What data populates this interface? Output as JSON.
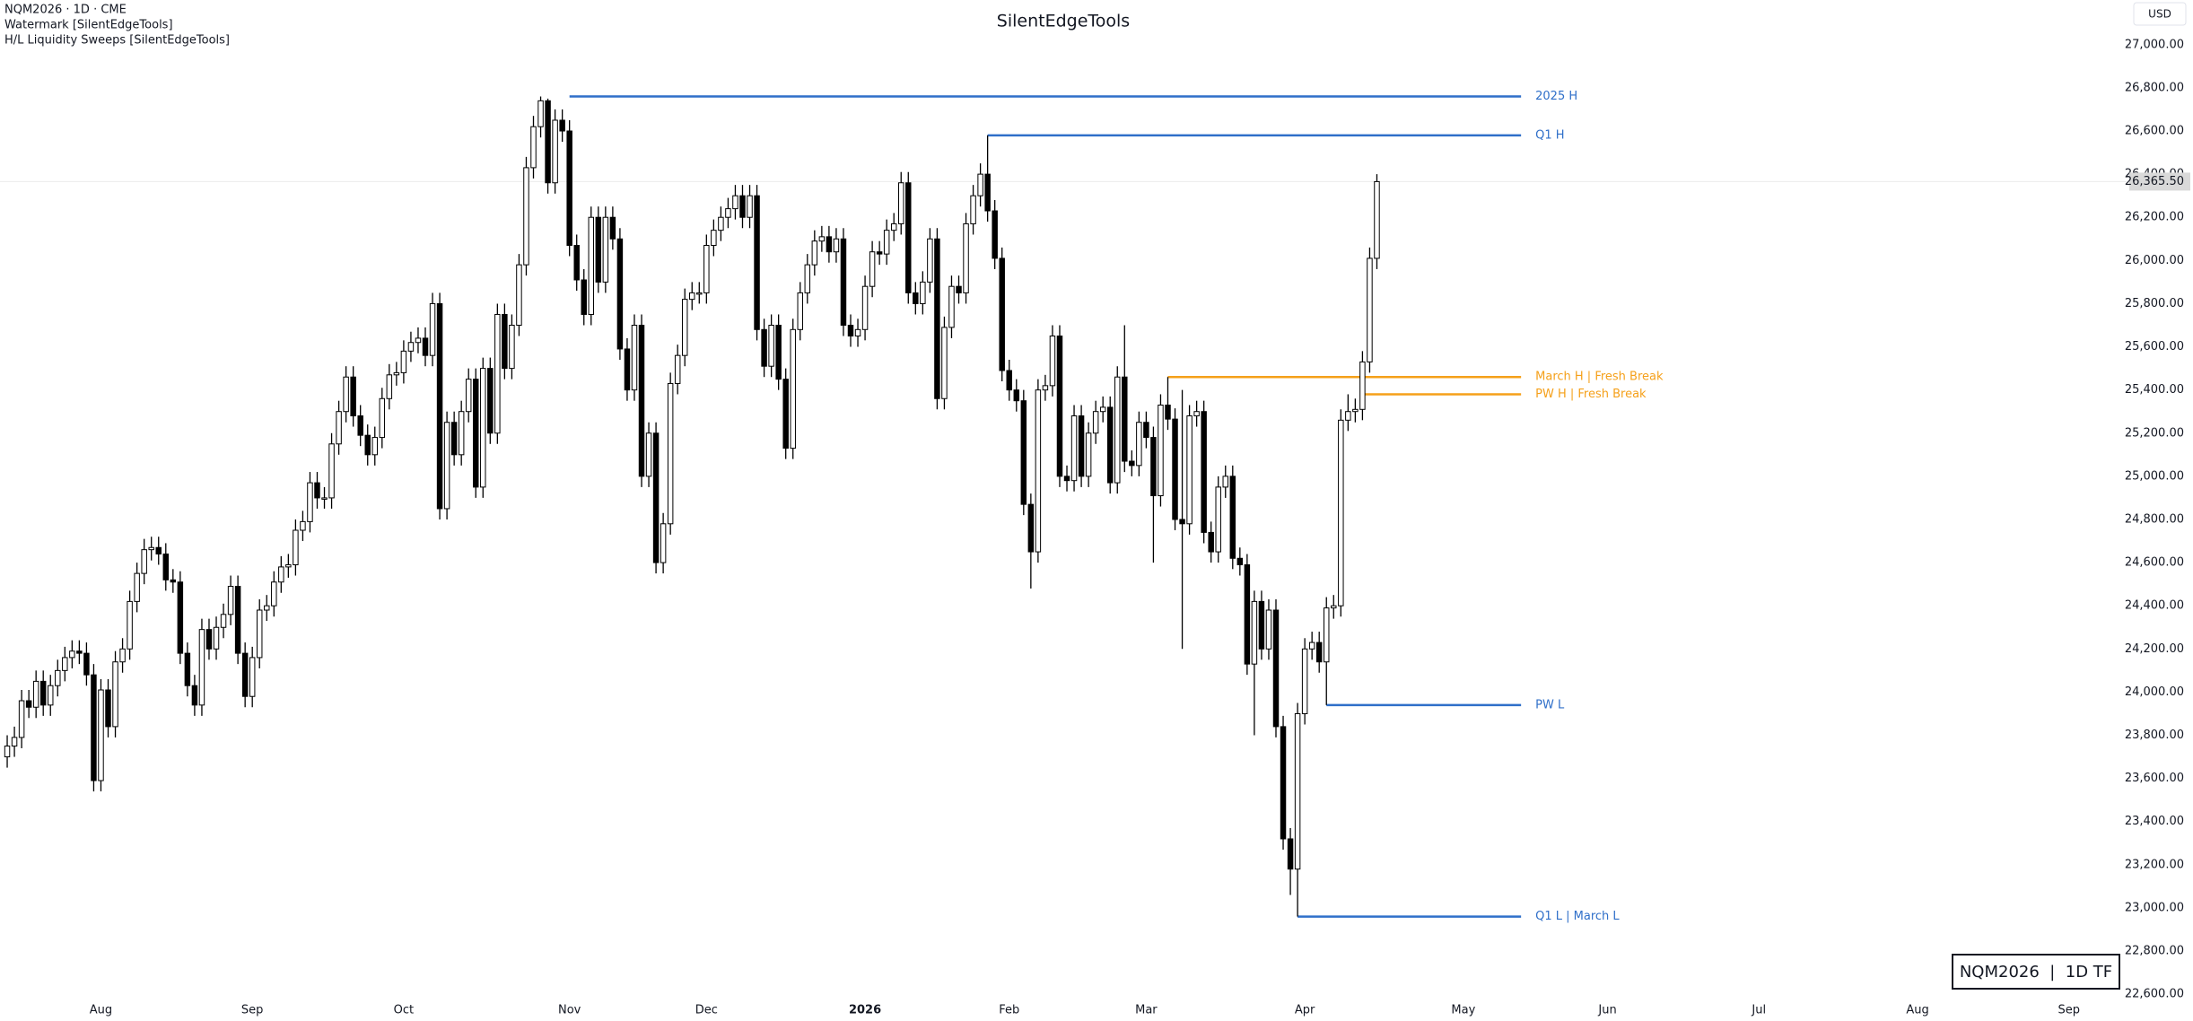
{
  "header": {
    "symbol": "NQM2026 · 1D · CME",
    "indicators": [
      "Watermark [SilentEdgeTools]",
      "H/L Liquidity Sweeps [SilentEdgeTools]"
    ],
    "currency": "USD"
  },
  "chart_data": {
    "type": "candlestick",
    "title": "SilentEdgeTools",
    "watermark": "NQM2026  |  1D TF",
    "up_color": "#ffffff",
    "down_color": "#000000",
    "wick_color": "#000000",
    "xlim": [
      -1,
      294
    ],
    "xticks": [
      {
        "value": 13,
        "label": "Aug"
      },
      {
        "value": 34,
        "label": "Sep"
      },
      {
        "value": 55,
        "label": "Oct"
      },
      {
        "value": 78,
        "label": "Nov"
      },
      {
        "value": 97,
        "label": "Dec"
      },
      {
        "value": 119,
        "label": "2026"
      },
      {
        "value": 139,
        "label": "Feb"
      },
      {
        "value": 158,
        "label": "Mar"
      },
      {
        "value": 180,
        "label": "Apr"
      },
      {
        "value": 202,
        "label": "May"
      },
      {
        "value": 222,
        "label": "Jun"
      },
      {
        "value": 243,
        "label": "Jul"
      },
      {
        "value": 265,
        "label": "Aug"
      },
      {
        "value": 286,
        "label": "Sep"
      }
    ],
    "ylim": [
      22476,
      27207
    ],
    "yticks": [
      {
        "value": 22600,
        "label": "22,600.00"
      },
      {
        "value": 22800,
        "label": "22,800.00"
      },
      {
        "value": 23000,
        "label": "23,000.00"
      },
      {
        "value": 23200,
        "label": "23,200.00"
      },
      {
        "value": 23400,
        "label": "23,400.00"
      },
      {
        "value": 23600,
        "label": "23,600.00"
      },
      {
        "value": 23800,
        "label": "23,800.00"
      },
      {
        "value": 24000,
        "label": "24,000.00"
      },
      {
        "value": 24200,
        "label": "24,200.00"
      },
      {
        "value": 24400,
        "label": "24,400.00"
      },
      {
        "value": 24600,
        "label": "24,600.00"
      },
      {
        "value": 24800,
        "label": "24,800.00"
      },
      {
        "value": 25000,
        "label": "25,000.00"
      },
      {
        "value": 25200,
        "label": "25,200.00"
      },
      {
        "value": 25400,
        "label": "25,400.00"
      },
      {
        "value": 25600,
        "label": "25,600.00"
      },
      {
        "value": 25800,
        "label": "25,800.00"
      },
      {
        "value": 26000,
        "label": "26,000.00"
      },
      {
        "value": 26200,
        "label": "26,200.00"
      },
      {
        "value": 26400,
        "label": "26,400.00"
      },
      {
        "value": 26600,
        "label": "26,600.00"
      },
      {
        "value": 26800,
        "label": "26,800.00"
      },
      {
        "value": 27000,
        "label": "27,000.00"
      }
    ],
    "last_price": {
      "value": 26365.5,
      "label": "26,365.50"
    },
    "open": [
      23700,
      23750,
      23790,
      23960,
      23930,
      24050,
      23940,
      24030,
      24100,
      24160,
      24190,
      24180,
      24080,
      23590,
      24010,
      23840,
      24140,
      24200,
      24420,
      24550,
      24660,
      24670,
      24640,
      24520,
      24510,
      24180,
      24030,
      23940,
      24290,
      24200,
      24300,
      24360,
      24490,
      24180,
      23980,
      24160,
      24380,
      24400,
      24510,
      24580,
      24590,
      24750,
      24790,
      24970,
      24900,
      24900,
      25150,
      25300,
      25460,
      25280,
      25190,
      25100,
      25180,
      25360,
      25470,
      25480,
      25580,
      25620,
      25640,
      25560,
      25800,
      24850,
      25250,
      25100,
      25300,
      25450,
      24950,
      25500,
      25200,
      25750,
      25500,
      25700,
      25980,
      26430,
      26620,
      26740,
      26360,
      26650,
      26600,
      26070,
      25910,
      25750,
      26200,
      25900,
      26200,
      26100,
      25590,
      25400,
      25700,
      25000,
      25200,
      24600,
      24780,
      25430,
      25560,
      25820,
      25850,
      25850,
      26070,
      26140,
      26200,
      26240,
      26300,
      26200,
      26300,
      25680,
      25510,
      25700,
      25450,
      25130,
      25680,
      25850,
      25980,
      26090,
      26110,
      26040,
      26100,
      25700,
      25650,
      25680,
      25880,
      26040,
      26030,
      26140,
      26170,
      26360,
      25850,
      25800,
      25900,
      26100,
      25360,
      25690,
      25880,
      25850,
      26170,
      26300,
      26400,
      26230,
      26010,
      25490,
      25400,
      25350,
      24870,
      24650,
      25400,
      25420,
      25650,
      25000,
      24980,
      25280,
      25000,
      25200,
      25300,
      25320,
      24970,
      25460,
      25070,
      25050,
      25250,
      25180,
      24910,
      25330,
      25265,
      24800,
      24780,
      25280,
      25300,
      24740,
      24650,
      24950,
      25000,
      24620,
      24590,
      24130,
      24420,
      24200,
      24380,
      23840,
      23320,
      23180,
      23900,
      24200,
      24230,
      24140,
      24390,
      24400,
      25260,
      25300,
      25310,
      25530,
      26010
    ],
    "high": [
      23800,
      23840,
      24010,
      24010,
      24100,
      24100,
      24080,
      24150,
      24210,
      24240,
      24240,
      24230,
      24130,
      24060,
      24060,
      24190,
      24250,
      24470,
      24600,
      24710,
      24720,
      24720,
      24690,
      24570,
      24560,
      24230,
      24080,
      24340,
      24340,
      24350,
      24410,
      24540,
      24540,
      24230,
      24210,
      24430,
      24450,
      24560,
      24630,
      24640,
      24800,
      24840,
      25020,
      25020,
      24950,
      25200,
      25350,
      25510,
      25510,
      25330,
      25240,
      25230,
      25410,
      25520,
      25530,
      25630,
      25670,
      25690,
      25690,
      25850,
      25850,
      25300,
      25300,
      25350,
      25500,
      25500,
      25550,
      25550,
      25800,
      25800,
      25750,
      26030,
      26480,
      26670,
      26760,
      26750,
      26700,
      26700,
      26650,
      26120,
      25960,
      26250,
      26250,
      26250,
      26250,
      26150,
      25640,
      25750,
      25750,
      25250,
      25250,
      24830,
      25480,
      25610,
      25870,
      25900,
      25900,
      26120,
      26190,
      26250,
      26290,
      26350,
      26350,
      26350,
      26350,
      25730,
      25750,
      25750,
      25500,
      25730,
      25900,
      26030,
      26140,
      26160,
      26160,
      26150,
      26150,
      25750,
      25730,
      25930,
      26090,
      26090,
      26190,
      26220,
      26410,
      26410,
      25900,
      25950,
      26150,
      26150,
      25740,
      25930,
      25930,
      26220,
      26350,
      26450,
      26580,
      26280,
      26060,
      25540,
      25450,
      25400,
      24920,
      25450,
      25470,
      25700,
      25700,
      25050,
      25330,
      25330,
      25250,
      25350,
      25370,
      25370,
      25510,
      25700,
      25120,
      25300,
      25300,
      25230,
      25380,
      25460,
      25315,
      25400,
      25330,
      25350,
      25350,
      24790,
      25000,
      25050,
      25050,
      24670,
      24640,
      24470,
      24470,
      24430,
      24430,
      23890,
      23370,
      23950,
      24250,
      24280,
      24280,
      24440,
      24450,
      25310,
      25380,
      25360,
      25580,
      26060,
      26400
    ],
    "low": [
      23650,
      23700,
      23740,
      23880,
      23880,
      23890,
      23890,
      23980,
      24050,
      24110,
      24130,
      24030,
      23540,
      23540,
      23790,
      23790,
      24090,
      24150,
      24370,
      24500,
      24610,
      24590,
      24470,
      24460,
      24130,
      23980,
      23890,
      23890,
      24150,
      24150,
      24250,
      24310,
      24130,
      23930,
      23930,
      24110,
      24330,
      24350,
      24460,
      24530,
      24540,
      24700,
      24740,
      24850,
      24850,
      24850,
      25100,
      25250,
      25230,
      25140,
      25050,
      25050,
      25130,
      25310,
      25420,
      25430,
      25530,
      25570,
      25510,
      25510,
      24800,
      24800,
      25050,
      25050,
      25250,
      24900,
      24900,
      25150,
      25150,
      25450,
      25450,
      25650,
      25930,
      26380,
      26570,
      26310,
      26310,
      26550,
      26020,
      25860,
      25700,
      25700,
      25850,
      25850,
      26050,
      25540,
      25350,
      25350,
      24950,
      24950,
      24550,
      24550,
      24730,
      25380,
      25510,
      25770,
      25800,
      25800,
      26020,
      26090,
      26150,
      26190,
      26150,
      26150,
      25630,
      25460,
      25460,
      25400,
      25080,
      25080,
      25630,
      25800,
      25930,
      26040,
      25990,
      25990,
      25650,
      25600,
      25600,
      25630,
      25830,
      25980,
      25980,
      26090,
      26120,
      25800,
      25750,
      25750,
      25850,
      25310,
      25310,
      25640,
      25800,
      25800,
      26120,
      26250,
      26180,
      25960,
      25440,
      25350,
      25300,
      24820,
      24480,
      24600,
      25350,
      25370,
      24950,
      24930,
      24930,
      24950,
      24950,
      25150,
      25250,
      24920,
      24920,
      25020,
      25000,
      25000,
      25130,
      24600,
      24860,
      25215,
      24750,
      24200,
      24730,
      25230,
      24690,
      24600,
      24600,
      24900,
      24570,
      24540,
      24080,
      23800,
      24150,
      24150,
      23790,
      23270,
      23060,
      22960,
      23850,
      24150,
      24090,
      23940,
      24340,
      24350,
      25210,
      25250,
      25260,
      25480,
      25960
    ],
    "close": [
      23750,
      23790,
      23960,
      23930,
      24050,
      23940,
      24030,
      24100,
      24160,
      24190,
      24180,
      24080,
      23590,
      24010,
      23840,
      24140,
      24200,
      24420,
      24550,
      24660,
      24670,
      24640,
      24520,
      24510,
      24180,
      24030,
      23940,
      24290,
      24200,
      24300,
      24360,
      24490,
      24180,
      23980,
      24160,
      24380,
      24400,
      24510,
      24580,
      24590,
      24750,
      24790,
      24970,
      24900,
      24900,
      25150,
      25300,
      25460,
      25280,
      25190,
      25100,
      25180,
      25360,
      25470,
      25480,
      25580,
      25620,
      25640,
      25560,
      25800,
      24850,
      25250,
      25100,
      25300,
      25450,
      24950,
      25500,
      25200,
      25750,
      25500,
      25700,
      25980,
      26430,
      26620,
      26740,
      26360,
      26650,
      26600,
      26070,
      25910,
      25750,
      26200,
      25900,
      26200,
      26100,
      25590,
      25400,
      25700,
      25000,
      25200,
      24600,
      24780,
      25430,
      25560,
      25820,
      25850,
      25850,
      26070,
      26140,
      26200,
      26240,
      26300,
      26200,
      26300,
      25680,
      25510,
      25700,
      25450,
      25130,
      25680,
      25850,
      25980,
      26090,
      26110,
      26040,
      26100,
      25700,
      25650,
      25680,
      25880,
      26040,
      26030,
      26140,
      26170,
      26360,
      25850,
      25800,
      25900,
      26100,
      25360,
      25690,
      25880,
      25850,
      26170,
      26300,
      26400,
      26230,
      26010,
      25490,
      25400,
      25350,
      24870,
      24650,
      25400,
      25420,
      25650,
      25000,
      24980,
      25280,
      25000,
      25200,
      25300,
      25320,
      24970,
      25460,
      25070,
      25050,
      25250,
      25180,
      24910,
      25330,
      25265,
      24800,
      24780,
      25280,
      25300,
      24740,
      24650,
      24950,
      25000,
      24620,
      24590,
      24130,
      24420,
      24200,
      24380,
      23840,
      23320,
      23180,
      23900,
      24200,
      24230,
      24140,
      24390,
      24400,
      25260,
      25300,
      25310,
      25530,
      26010,
      26365.5
    ],
    "levels": [
      {
        "label": "2025 H",
        "value": 26760,
        "start": 78,
        "end": 210,
        "color": "#2f6fc9"
      },
      {
        "label": "Q1 H",
        "value": 26580,
        "start": 136,
        "end": 210,
        "color": "#2f6fc9"
      },
      {
        "label": "March H | Fresh Break",
        "value": 25460,
        "start": 161,
        "end": 210,
        "color": "#f5a01a"
      },
      {
        "label": "PW H | Fresh Break",
        "value": 25380,
        "start": 188,
        "end": 210,
        "color": "#f5a01a"
      },
      {
        "label": "PW L",
        "value": 23940,
        "start": 183,
        "end": 210,
        "color": "#2f6fc9"
      },
      {
        "label": "Q1 L | March L",
        "value": 22960,
        "start": 179,
        "end": 210,
        "color": "#2f6fc9"
      }
    ]
  }
}
